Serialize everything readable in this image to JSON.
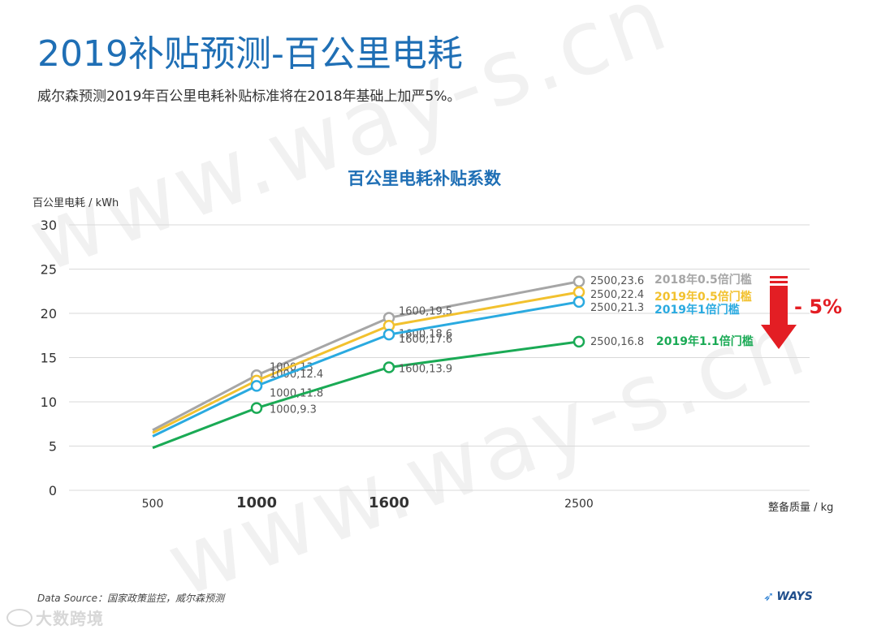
{
  "page": {
    "title": "2019补贴预测-百公里电耗",
    "subtitle": "威尔森预测2019年百公里电耗补贴标准将在2018年基础上加严5%。",
    "source": "Data Source：国家政策监控，威尔森预测",
    "brand": "WAYS",
    "corner_watermark": "大数跨境",
    "watermark_text": "www.way-s.cn"
  },
  "chart_data": {
    "type": "line",
    "title": "百公里电耗补贴系数",
    "ylabel": "百公里电耗 / kWh",
    "xlabel": "整备质量 / kg",
    "ylim": [
      0,
      30
    ],
    "yticks": [
      "0",
      "5",
      "10",
      "15",
      "20",
      "25",
      "30"
    ],
    "xticks": [
      {
        "value": 500,
        "label": "500",
        "bold": false
      },
      {
        "value": 1000,
        "label": "1000",
        "bold": true
      },
      {
        "value": 1600,
        "label": "1600",
        "bold": true
      },
      {
        "value": 2500,
        "label": "2500",
        "bold": false
      }
    ],
    "grid": true,
    "series": [
      {
        "name": "2018年0.5倍门槛",
        "color": "#a6a6a6",
        "points": [
          {
            "x": 500,
            "y": 6.8
          },
          {
            "x": 1000,
            "y": 13
          },
          {
            "x": 1600,
            "y": 19.5
          },
          {
            "x": 2500,
            "y": 23.6
          }
        ],
        "labels": [
          "",
          "1000,13",
          "1600,19.5",
          "2500,23.6"
        ]
      },
      {
        "name": "2019年0.5倍门槛",
        "color": "#f2c12e",
        "points": [
          {
            "x": 500,
            "y": 6.5
          },
          {
            "x": 1000,
            "y": 12.4
          },
          {
            "x": 1600,
            "y": 18.6
          },
          {
            "x": 2500,
            "y": 22.4
          }
        ],
        "labels": [
          "",
          "1000,12.4",
          "1600,18.6",
          "2500,22.4"
        ]
      },
      {
        "name": "2019年1倍门槛",
        "color": "#2aaae0",
        "points": [
          {
            "x": 500,
            "y": 6.1
          },
          {
            "x": 1000,
            "y": 11.8
          },
          {
            "x": 1600,
            "y": 17.6
          },
          {
            "x": 2500,
            "y": 21.3
          }
        ],
        "labels": [
          "",
          "1000,11.8",
          "1600,17.6",
          "2500,21.3"
        ]
      },
      {
        "name": "2019年1.1倍门槛",
        "color": "#1aaa55",
        "points": [
          {
            "x": 500,
            "y": 4.8
          },
          {
            "x": 1000,
            "y": 9.3
          },
          {
            "x": 1600,
            "y": 13.9
          },
          {
            "x": 2500,
            "y": 16.8
          }
        ],
        "labels": [
          "",
          "1000,9.3",
          "1600,13.9",
          "2500,16.8"
        ]
      }
    ],
    "annotation": {
      "text": "- 5%",
      "color": "#e31e24"
    }
  }
}
